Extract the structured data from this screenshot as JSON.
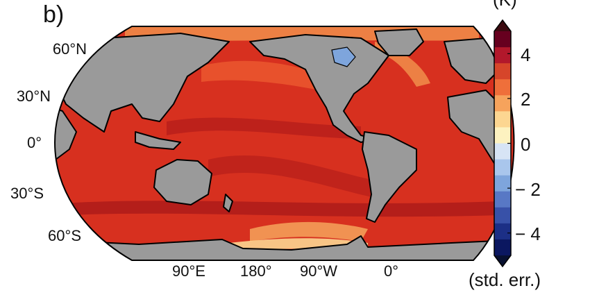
{
  "panel_label": "b)",
  "partial_top_text": "(K)",
  "map": {
    "ocean_color": "#d7301f",
    "land_color": "#9a9a9a",
    "latitude_labels": [
      "60°N",
      "30°N",
      "0°",
      "30°S",
      "60°S"
    ],
    "longitude_labels": [
      "90°E",
      "180°",
      "90°W",
      "0°"
    ]
  },
  "colorbar": {
    "unit_label": "(std. err.)",
    "tick_labels": [
      "4",
      "2",
      "0",
      "− 2",
      "− 4"
    ],
    "colors": [
      "#67001f",
      "#b2182b",
      "#d6452a",
      "#ef6f3a",
      "#f6a35c",
      "#fcd691",
      "#fdf2c0",
      "#d7e4f5",
      "#a9c6ec",
      "#7ea5dc",
      "#5878c5",
      "#3851a8",
      "#1c2f86",
      "#0b1760"
    ]
  }
}
